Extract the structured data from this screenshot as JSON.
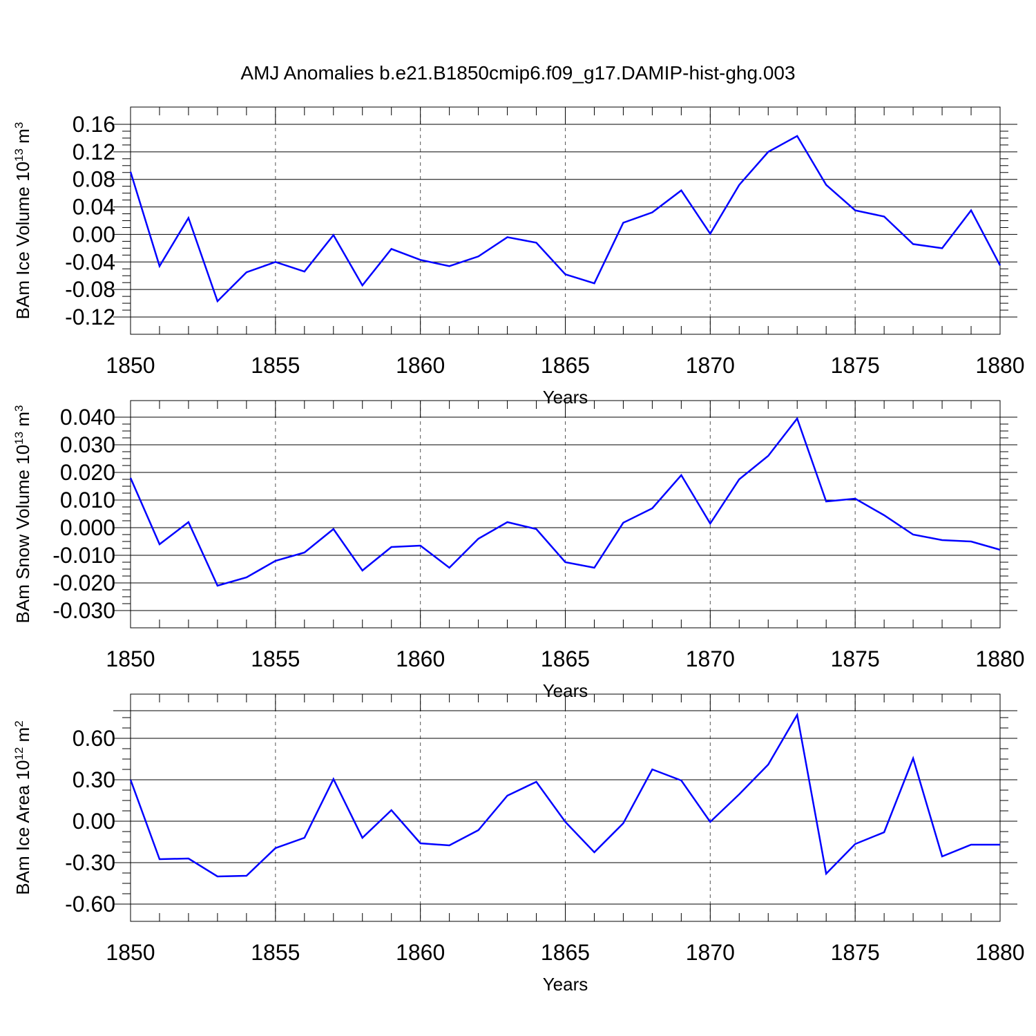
{
  "title": "AMJ Anomalies b.e21.B1850cmip6.f09_g17.DAMIP-hist-ghg.003",
  "colors": {
    "line": "#0000ff",
    "axis": "#000000",
    "grid": "#555555",
    "background": "#ffffff"
  },
  "chart_data": [
    {
      "type": "line",
      "xlabel": "Years",
      "ylabel": {
        "text": "BAm Ice Volume 10",
        "sup": "13",
        "unit": " m",
        "unit_sup": "3"
      },
      "xlim": [
        1850,
        1880
      ],
      "ylim": [
        -0.12,
        0.16
      ],
      "xticks": [
        "1850",
        "1855",
        "1860",
        "1865",
        "1870",
        "1875",
        "1880"
      ],
      "yticks": [
        "-0.12",
        "-0.08",
        "-0.04",
        "0.00",
        "0.04",
        "0.08",
        "0.12",
        "0.16"
      ],
      "grid": "vertical dashed at major x ticks",
      "x": [
        1850,
        1851,
        1852,
        1853,
        1854,
        1855,
        1856,
        1857,
        1858,
        1859,
        1860,
        1861,
        1862,
        1863,
        1864,
        1865,
        1866,
        1867,
        1868,
        1869,
        1870,
        1871,
        1872,
        1873,
        1874,
        1875,
        1876,
        1877,
        1878,
        1879,
        1880
      ],
      "values": [
        0.091,
        -0.046,
        0.024,
        -0.097,
        -0.055,
        -0.04,
        -0.054,
        -0.001,
        -0.074,
        -0.021,
        -0.037,
        -0.046,
        -0.032,
        -0.004,
        -0.012,
        -0.058,
        -0.071,
        0.017,
        0.032,
        0.064,
        0.001,
        0.072,
        0.12,
        0.143,
        0.072,
        0.035,
        0.026,
        -0.014,
        -0.02,
        0.035,
        -0.045
      ]
    },
    {
      "type": "line",
      "xlabel": "Years",
      "ylabel": {
        "text": "BAm Snow Volume 10",
        "sup": "13",
        "unit": " m",
        "unit_sup": "3"
      },
      "xlim": [
        1850,
        1880
      ],
      "ylim": [
        -0.03,
        0.04
      ],
      "xticks": [
        "1850",
        "1855",
        "1860",
        "1865",
        "1870",
        "1875",
        "1880"
      ],
      "yticks": [
        "-0.030",
        "-0.020",
        "-0.010",
        "0.000",
        "0.010",
        "0.020",
        "0.030",
        "0.040"
      ],
      "grid": "vertical dashed at major x ticks",
      "x": [
        1850,
        1851,
        1852,
        1853,
        1854,
        1855,
        1856,
        1857,
        1858,
        1859,
        1860,
        1861,
        1862,
        1863,
        1864,
        1865,
        1866,
        1867,
        1868,
        1869,
        1870,
        1871,
        1872,
        1873,
        1874,
        1875,
        1876,
        1877,
        1878,
        1879,
        1880
      ],
      "values": [
        0.018,
        -0.006,
        0.002,
        -0.021,
        -0.018,
        -0.012,
        -0.009,
        -0.0005,
        -0.0155,
        -0.007,
        -0.0065,
        -0.0145,
        -0.004,
        0.002,
        -0.0005,
        -0.0125,
        -0.0145,
        0.0018,
        0.007,
        0.019,
        0.0015,
        0.0175,
        0.026,
        0.0395,
        0.0095,
        0.0105,
        0.0045,
        -0.0025,
        -0.0045,
        -0.005,
        -0.008
      ]
    },
    {
      "type": "line",
      "xlabel": "Years",
      "ylabel": {
        "text": "BAm Ice Area 10",
        "sup": "12",
        "unit": " m",
        "unit_sup": "2"
      },
      "xlim": [
        1850,
        1880
      ],
      "ylim": [
        -0.6,
        0.8
      ],
      "xticks": [
        "1850",
        "1855",
        "1860",
        "1865",
        "1870",
        "1875",
        "1880"
      ],
      "yticks": [
        "-0.60",
        "-0.30",
        "0.00",
        "0.30",
        "0.60"
      ],
      "ytick_values": [
        -0.6,
        -0.3,
        0.0,
        0.3,
        0.6
      ],
      "grid": "vertical dashed at major x ticks",
      "x": [
        1850,
        1851,
        1852,
        1853,
        1854,
        1855,
        1856,
        1857,
        1858,
        1859,
        1860,
        1861,
        1862,
        1863,
        1864,
        1865,
        1866,
        1867,
        1868,
        1869,
        1870,
        1871,
        1872,
        1873,
        1874,
        1875,
        1876,
        1877,
        1878,
        1879,
        1880
      ],
      "values": [
        0.3,
        -0.275,
        -0.27,
        -0.4,
        -0.395,
        -0.195,
        -0.12,
        0.305,
        -0.12,
        0.08,
        -0.16,
        -0.175,
        -0.065,
        0.185,
        0.285,
        -0.005,
        -0.225,
        -0.015,
        0.375,
        0.295,
        -0.005,
        0.195,
        0.41,
        0.77,
        -0.38,
        -0.165,
        -0.08,
        0.455,
        -0.255,
        -0.17,
        -0.17
      ]
    }
  ]
}
